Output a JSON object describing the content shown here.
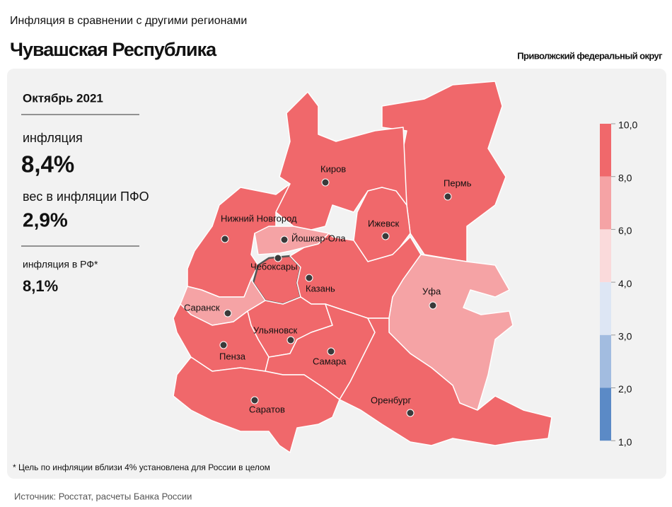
{
  "header": {
    "subtitle": "Инфляция в сравнении с другими регионами",
    "title": "Чувашская Республика",
    "district": "Приволжский федеральный округ"
  },
  "info": {
    "period": "Октябрь 2021",
    "inflation_label": "инфляция",
    "inflation_value": "8,4%",
    "weight_label": "вес в инфляции ПФО",
    "weight_value": "2,9%",
    "rf_label": "инфляция в РФ*",
    "rf_value": "8,1%"
  },
  "regions": [
    {
      "label": "Пермь",
      "color": "#f0686b"
    },
    {
      "label": "Киров",
      "color": "#f0686b"
    },
    {
      "label": "Ижевск",
      "color": "#f0686b"
    },
    {
      "label": "Нижний Новгород",
      "color": "#f0686b"
    },
    {
      "label": "Йошкар-Ола",
      "color": "#f5a3a5"
    },
    {
      "label": "Чебоксары",
      "color": "#f0686b"
    },
    {
      "label": "Казань",
      "color": "#f0686b"
    },
    {
      "label": "Уфа",
      "color": "#f5a3a5"
    },
    {
      "label": "Саранск",
      "color": "#f5a3a5"
    },
    {
      "label": "Ульяновск",
      "color": "#f0686b"
    },
    {
      "label": "Пенза",
      "color": "#f0686b"
    },
    {
      "label": "Самара",
      "color": "#f0686b"
    },
    {
      "label": "Саратов",
      "color": "#f0686b"
    },
    {
      "label": "Оренбург",
      "color": "#f0686b"
    }
  ],
  "legend": {
    "ticks": [
      {
        "value": 10,
        "label": "10,0"
      },
      {
        "value": 8,
        "label": "8,0"
      },
      {
        "value": 6,
        "label": "6,0"
      },
      {
        "value": 4,
        "label": "4,0"
      },
      {
        "value": 3,
        "label": "3,0"
      },
      {
        "value": 2,
        "label": "2,0"
      },
      {
        "value": 1,
        "label": "1,0"
      }
    ],
    "colors": [
      "#f0686b",
      "#f5a3a5",
      "#fadadb",
      "#dde6f4",
      "#a2bce0",
      "#5b8ac6"
    ]
  },
  "footnote": "* Цель по инфляции вблизи 4% установлена для России в целом",
  "source": "Источник: Росстат, расчеты Банка России"
}
